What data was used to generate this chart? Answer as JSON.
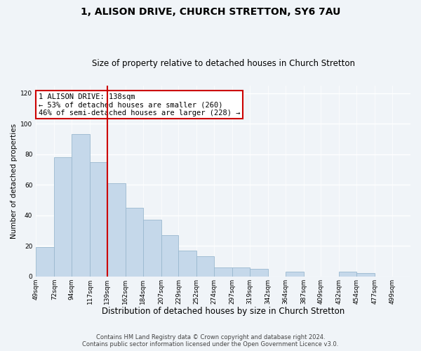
{
  "title": "1, ALISON DRIVE, CHURCH STRETTON, SY6 7AU",
  "subtitle": "Size of property relative to detached houses in Church Stretton",
  "xlabel": "Distribution of detached houses by size in Church Stretton",
  "ylabel": "Number of detached properties",
  "bar_color": "#c5d8ea",
  "bar_edge_color": "#9ab8cf",
  "background_color": "#f0f4f8",
  "vline_color": "#cc0000",
  "vline_x": 139,
  "annotation_text": "1 ALISON DRIVE: 138sqm\n← 53% of detached houses are smaller (260)\n46% of semi-detached houses are larger (228) →",
  "annotation_box_color": "#ffffff",
  "annotation_box_edge": "#cc0000",
  "bins": [
    49,
    72,
    94,
    117,
    139,
    162,
    184,
    207,
    229,
    252,
    274,
    297,
    319,
    342,
    364,
    387,
    409,
    432,
    454,
    477,
    499
  ],
  "counts": [
    19,
    78,
    93,
    75,
    61,
    45,
    37,
    27,
    17,
    13,
    6,
    6,
    5,
    0,
    3,
    0,
    0,
    3,
    2,
    0
  ],
  "tick_labels": [
    "49sqm",
    "72sqm",
    "94sqm",
    "117sqm",
    "139sqm",
    "162sqm",
    "184sqm",
    "207sqm",
    "229sqm",
    "252sqm",
    "274sqm",
    "297sqm",
    "319sqm",
    "342sqm",
    "364sqm",
    "387sqm",
    "409sqm",
    "432sqm",
    "454sqm",
    "477sqm",
    "499sqm"
  ],
  "ylim": [
    0,
    125
  ],
  "yticks": [
    0,
    20,
    40,
    60,
    80,
    100,
    120
  ],
  "footer": "Contains HM Land Registry data © Crown copyright and database right 2024.\nContains public sector information licensed under the Open Government Licence v3.0.",
  "title_fontsize": 10,
  "subtitle_fontsize": 8.5,
  "xlabel_fontsize": 8.5,
  "ylabel_fontsize": 7.5,
  "tick_fontsize": 6.5,
  "footer_fontsize": 6,
  "ann_fontsize": 7.5
}
